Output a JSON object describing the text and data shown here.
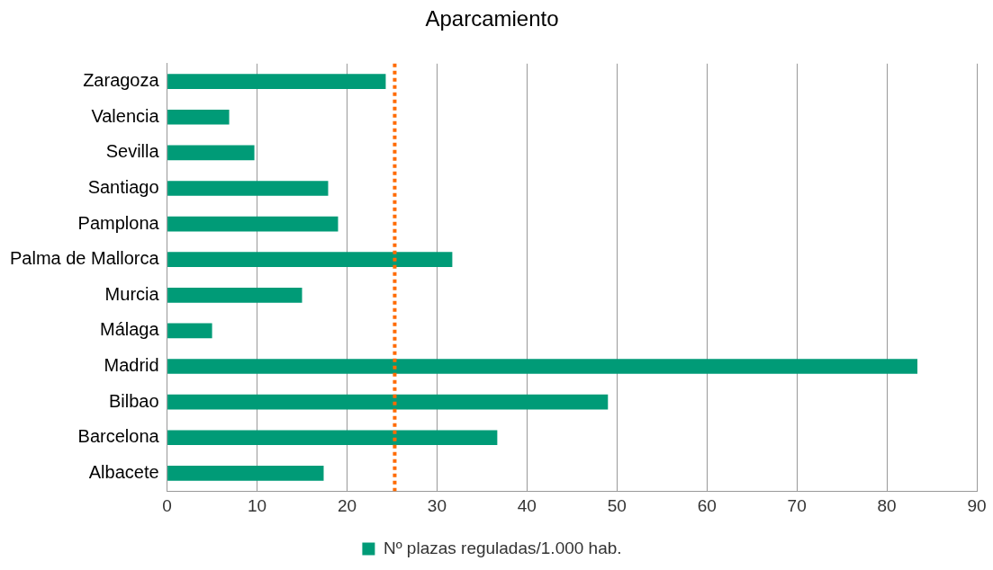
{
  "chart_data": {
    "type": "bar",
    "orientation": "horizontal",
    "title": "Aparcamiento",
    "categories": [
      "Zaragoza",
      "Valencia",
      "Sevilla",
      "Santiago",
      "Pamplona",
      "Palma de Mallorca",
      "Murcia",
      "Málaga",
      "Madrid",
      "Bilbao",
      "Barcelona",
      "Albacete"
    ],
    "series": [
      {
        "name": "Nº plazas reguladas/1.000 hab.",
        "color": "#009b77",
        "values": [
          24.3,
          6.9,
          9.7,
          17.9,
          19.0,
          31.7,
          15.0,
          5.0,
          83.4,
          49.0,
          36.7,
          17.4
        ]
      }
    ],
    "xlim": [
      0,
      90
    ],
    "xticks": [
      0,
      10,
      20,
      30,
      40,
      50,
      60,
      70,
      80,
      90
    ],
    "grid": "x",
    "legend": "bottom",
    "ref_lines": [
      {
        "axis": "x",
        "value": 25.3,
        "color": "#ff6a00",
        "line_style": "dotted"
      }
    ]
  }
}
